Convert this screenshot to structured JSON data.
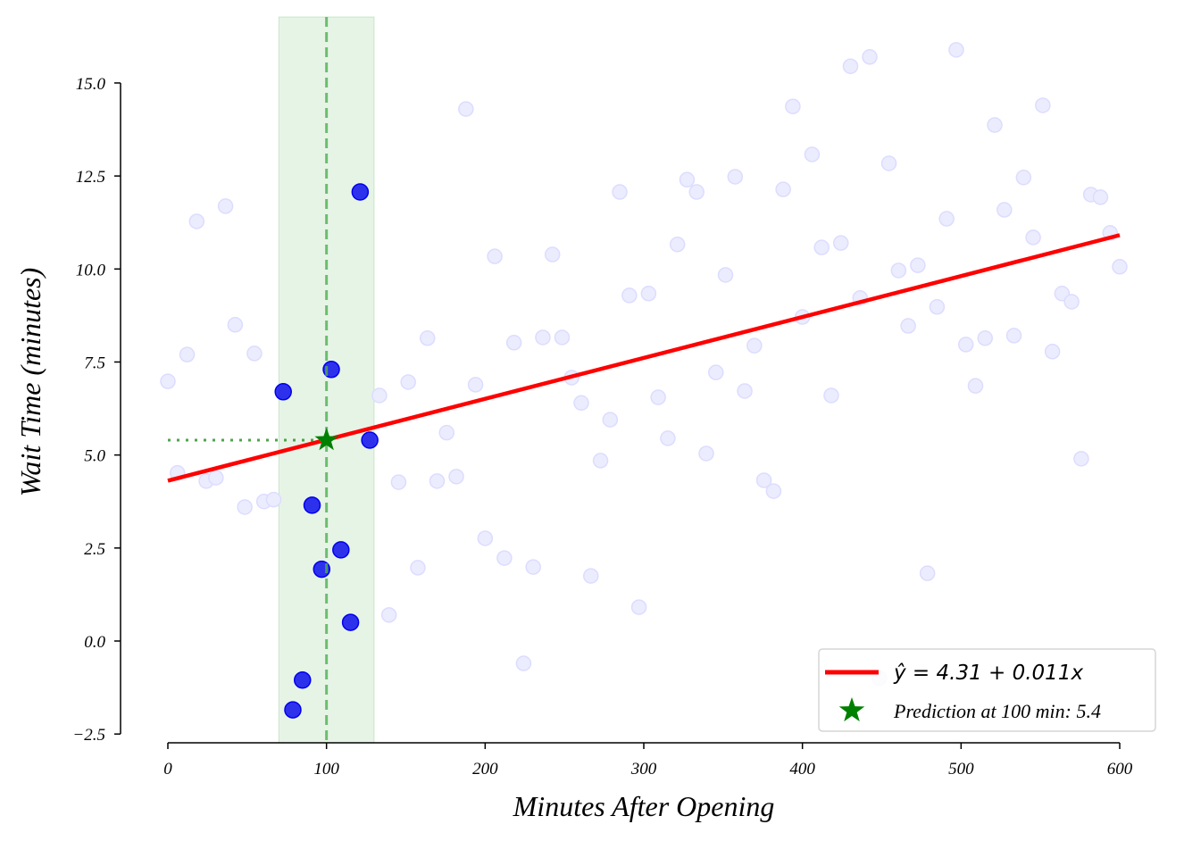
{
  "chart_data": {
    "type": "scatter",
    "xlabel": "Minutes After Opening",
    "ylabel": "Wait Time (minutes)",
    "xlim": [
      -30,
      630
    ],
    "ylim": [
      -2.74,
      16.77
    ],
    "x_ticks": [
      "0",
      "100",
      "200",
      "300",
      "400",
      "500",
      "600"
    ],
    "x_tick_values": [
      0,
      100,
      200,
      300,
      400,
      500,
      600
    ],
    "y_ticks": [
      "−2.5",
      "0.0",
      "2.5",
      "5.0",
      "7.5",
      "10.0",
      "12.5",
      "15.0"
    ],
    "y_tick_values": [
      -2.5,
      0,
      2.5,
      5,
      7.5,
      10,
      12.5,
      15
    ],
    "grid": false,
    "legend_position": "bottom-right",
    "colors": {
      "faint": "#d8d8ff",
      "highlight": "#0000ee",
      "fit": "#ff0000",
      "prediction": "#008000",
      "span": "#4caf50"
    },
    "scatter_y": [
      6.98,
      4.52,
      7.7,
      11.28,
      4.3,
      4.39,
      11.69,
      8.5,
      3.6,
      7.73,
      3.75,
      3.8,
      6.7,
      -1.85,
      -1.05,
      3.65,
      1.93,
      7.3,
      2.45,
      0.5,
      12.07,
      5.4,
      6.6,
      0.7,
      4.27,
      6.96,
      1.97,
      8.14,
      4.3,
      5.6,
      4.42,
      14.3,
      6.89,
      2.76,
      10.34,
      2.23,
      8.02,
      -0.6,
      1.99,
      8.16,
      10.39,
      8.16,
      7.08,
      6.4,
      1.75,
      4.85,
      5.95,
      12.07,
      9.29,
      0.91,
      9.34,
      6.55,
      5.45,
      10.66,
      12.4,
      12.07,
      5.04,
      7.22,
      9.84,
      12.48,
      6.72,
      7.94,
      4.32,
      4.03,
      12.14,
      14.37,
      8.71,
      13.08,
      10.58,
      6.6,
      10.7,
      15.45,
      9.22,
      15.7,
      -1.0,
      12.84,
      9.96,
      8.47,
      10.1,
      1.82,
      8.98,
      11.35,
      15.89,
      7.97,
      6.86,
      8.14,
      13.87,
      11.59,
      8.21,
      12.46,
      10.85,
      14.4,
      7.78,
      9.34,
      9.12,
      4.9,
      12.0,
      11.93,
      10.97,
      10.06
    ],
    "scatter_x_range": [
      0,
      600
    ],
    "scatter_count": 100,
    "highlight_window": [
      70,
      130
    ],
    "fit": {
      "intercept": 4.31,
      "slope": 0.011,
      "x_range": [
        0,
        600
      ]
    },
    "prediction": {
      "x": 100,
      "y": 5.4
    },
    "legend": [
      {
        "label": "ŷ = 4.31 + 0.011x",
        "type": "line"
      },
      {
        "label": "Prediction at 100 min: 5.4",
        "type": "star"
      }
    ]
  }
}
